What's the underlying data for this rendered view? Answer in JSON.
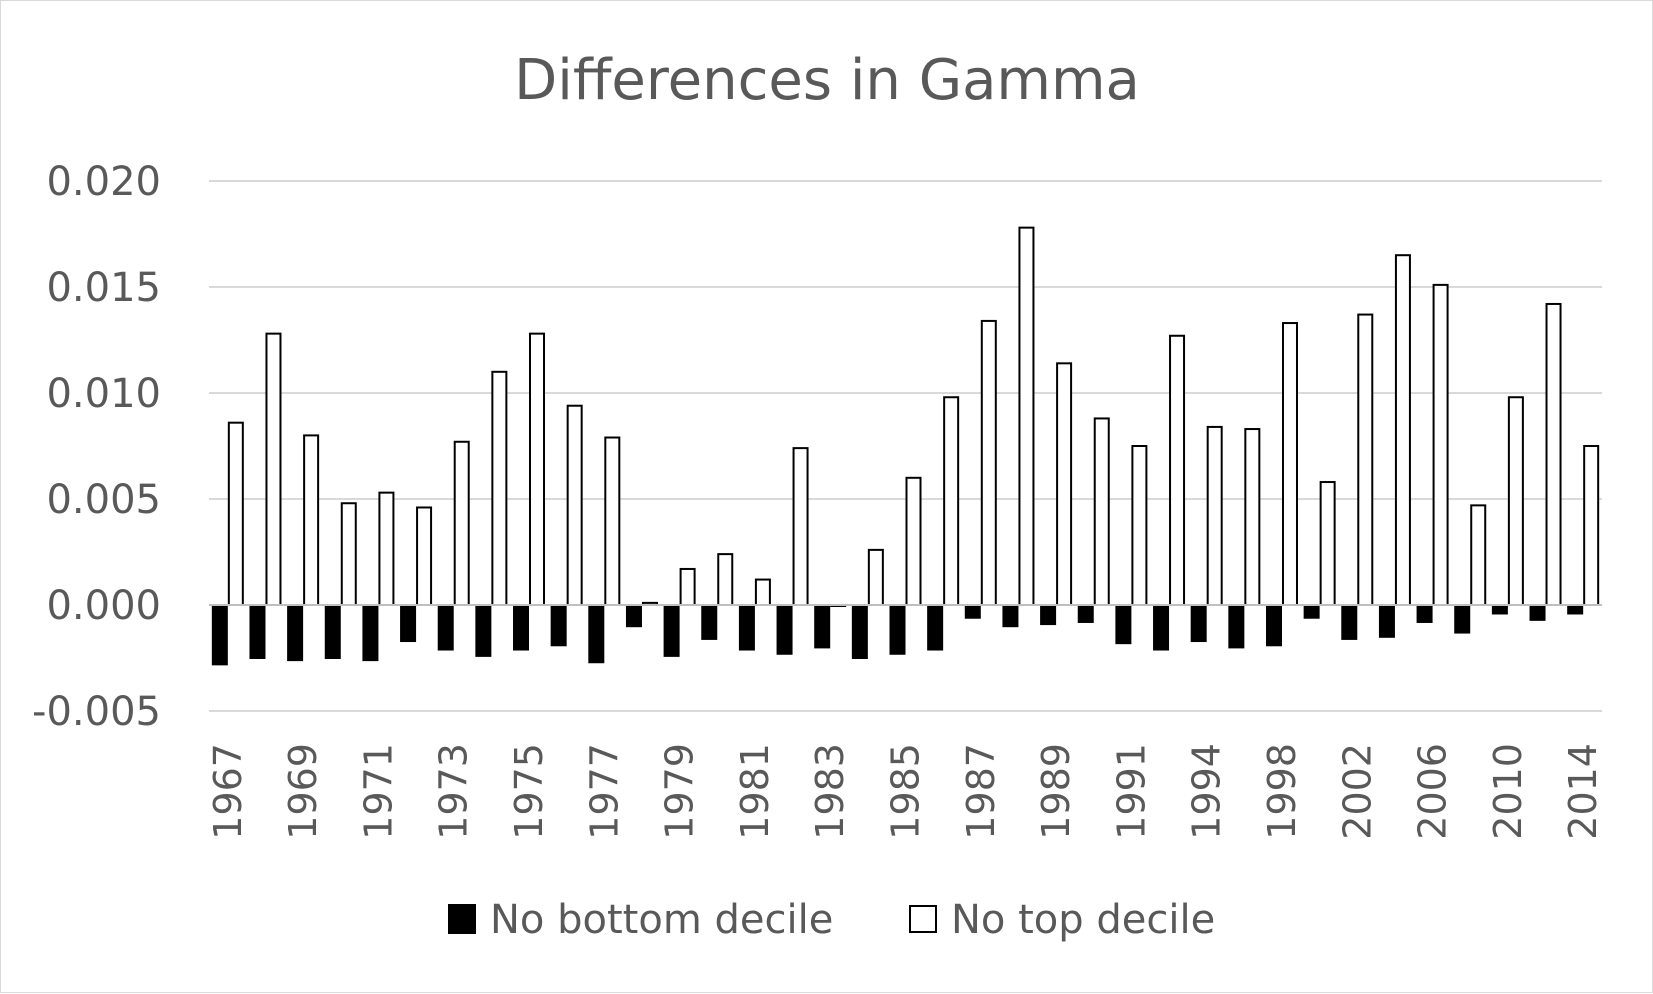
{
  "chart_data": {
    "type": "bar",
    "title": "Differences in Gamma",
    "xlabel": "",
    "ylabel": "",
    "ylim": [
      -0.005,
      0.02
    ],
    "yticks": [
      "0.020",
      "0.015",
      "0.010",
      "0.005",
      "0.000",
      "-0.005"
    ],
    "ytick_values": [
      0.02,
      0.015,
      0.01,
      0.005,
      0.0,
      -0.005
    ],
    "grid": true,
    "legend_position": "bottom",
    "categories": [
      "1967",
      "1968",
      "1969",
      "1970",
      "1971",
      "1972",
      "1973",
      "1974",
      "1975",
      "1976",
      "1977",
      "1978",
      "1979",
      "1980",
      "1981",
      "1982",
      "1983",
      "1984",
      "1985",
      "1986",
      "1987",
      "1988",
      "1989",
      "1990",
      "1991",
      "1992",
      "1994",
      "1996",
      "1998",
      "2000",
      "2002",
      "2004",
      "2006",
      "2008",
      "2010",
      "2012",
      "2014"
    ],
    "tick_labels": [
      "1967",
      "",
      "1969",
      "",
      "1971",
      "",
      "1973",
      "",
      "1975",
      "",
      "1977",
      "",
      "1979",
      "",
      "1981",
      "",
      "1983",
      "",
      "1985",
      "",
      "1987",
      "",
      "1989",
      "",
      "1991",
      "",
      "1994",
      "",
      "1998",
      "",
      "2002",
      "",
      "2006",
      "",
      "2010",
      "",
      "2014"
    ],
    "series": [
      {
        "name": "No bottom decile",
        "color": "#000000",
        "values": [
          -0.0028,
          -0.0025,
          -0.0026,
          -0.0025,
          -0.0026,
          -0.0017,
          -0.0021,
          -0.0024,
          -0.0021,
          -0.0019,
          -0.0027,
          -0.001,
          -0.0024,
          -0.0016,
          -0.0021,
          -0.0023,
          -0.002,
          -0.0025,
          -0.0023,
          -0.0021,
          -0.0006,
          -0.001,
          -0.0009,
          -0.0008,
          -0.0018,
          -0.0021,
          -0.0017,
          -0.002,
          -0.0019,
          -0.0006,
          -0.0016,
          -0.0015,
          -0.0008,
          -0.0013,
          -0.0004,
          -0.0007,
          -0.0004
        ]
      },
      {
        "name": "No top decile",
        "color": "#ffffff",
        "values": [
          0.0086,
          0.0128,
          0.008,
          0.0048,
          0.0053,
          0.0046,
          0.0077,
          0.011,
          0.0128,
          0.0094,
          0.0079,
          0.0001,
          0.0017,
          0.0024,
          0.0012,
          0.0074,
          0.0,
          0.0026,
          0.006,
          0.0098,
          0.0134,
          0.0178,
          0.0114,
          0.0088,
          0.0075,
          0.0127,
          0.0084,
          0.0083,
          0.0133,
          0.0058,
          0.0137,
          0.0165,
          0.0151,
          0.0047,
          0.0098,
          0.0142,
          0.0075
        ]
      }
    ]
  }
}
